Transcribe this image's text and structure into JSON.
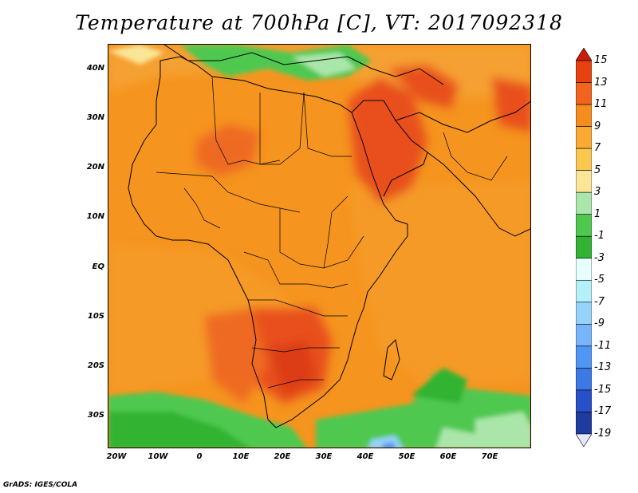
{
  "title": "Temperature at 700hPa [C], VT: 2017092318",
  "credit": "GrADS: IGES/COLA",
  "map": {
    "lat_labels": [
      "40N",
      "30N",
      "20N",
      "10N",
      "EQ",
      "10S",
      "20S",
      "30S"
    ],
    "lon_labels": [
      "20W",
      "10W",
      "0",
      "10E",
      "20E",
      "30E",
      "40E",
      "50E",
      "60E",
      "70E"
    ],
    "lat_range": [
      -36,
      44
    ],
    "lon_range": [
      -22,
      80
    ]
  },
  "colorbar": {
    "labels": [
      "15",
      "13",
      "11",
      "9",
      "7",
      "5",
      "3",
      "1",
      "-1",
      "-3",
      "-5",
      "-7",
      "-9",
      "-11",
      "-13",
      "-15",
      "-17",
      "-19"
    ],
    "colors": [
      "#c81e0a",
      "#e6410f",
      "#f0641e",
      "#f58c1e",
      "#faaa32",
      "#fac850",
      "#fae696",
      "#aae6aa",
      "#50c850",
      "#32b432",
      "#e6ffff",
      "#b4f0fa",
      "#96d2fa",
      "#78b4fa",
      "#5096f5",
      "#3c78e6",
      "#2850c8",
      "#1e3ca0",
      "#141e78"
    ]
  }
}
